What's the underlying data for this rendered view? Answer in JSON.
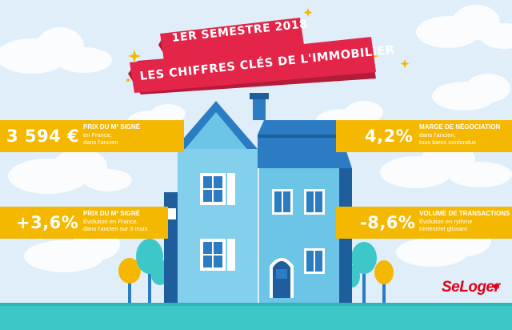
{
  "banner": {
    "line1": "1ER SEMESTRE 2018",
    "line2": "LES CHIFFRES CLÉS DE L'IMMOBILIER"
  },
  "stats": {
    "price": {
      "value": "3 594 €",
      "label": "PRIX DU M² SIGNÉ",
      "desc": [
        "en France,",
        "dans l'ancien"
      ]
    },
    "margin": {
      "value": "4,2%",
      "label": "MARGE DE NÉGOCIATION",
      "desc": [
        "dans l'ancien,",
        "tous biens confondus"
      ]
    },
    "evolution": {
      "value": "+3,6%",
      "label": "PRIX DU M² SIGNÉ",
      "desc": [
        "Évolution en France,",
        "dans l'ancien sur 3 mois"
      ]
    },
    "transactions": {
      "value": "-8,6%",
      "label": "VOLUME DE TRANSACTIONS",
      "desc": [
        "Évolution en rythme",
        "trimestriel glissant"
      ]
    }
  },
  "logo": {
    "text": "SeLoger"
  },
  "colors": {
    "sky": "#dfeef9",
    "ribbon_red": "#e4254a",
    "stat_yellow": "#f5b800",
    "house_blue": "#6cc5e6",
    "roof_blue": "#2c7cc4",
    "ground_teal": "#3ec7c9",
    "brand_red": "#e2001a"
  }
}
